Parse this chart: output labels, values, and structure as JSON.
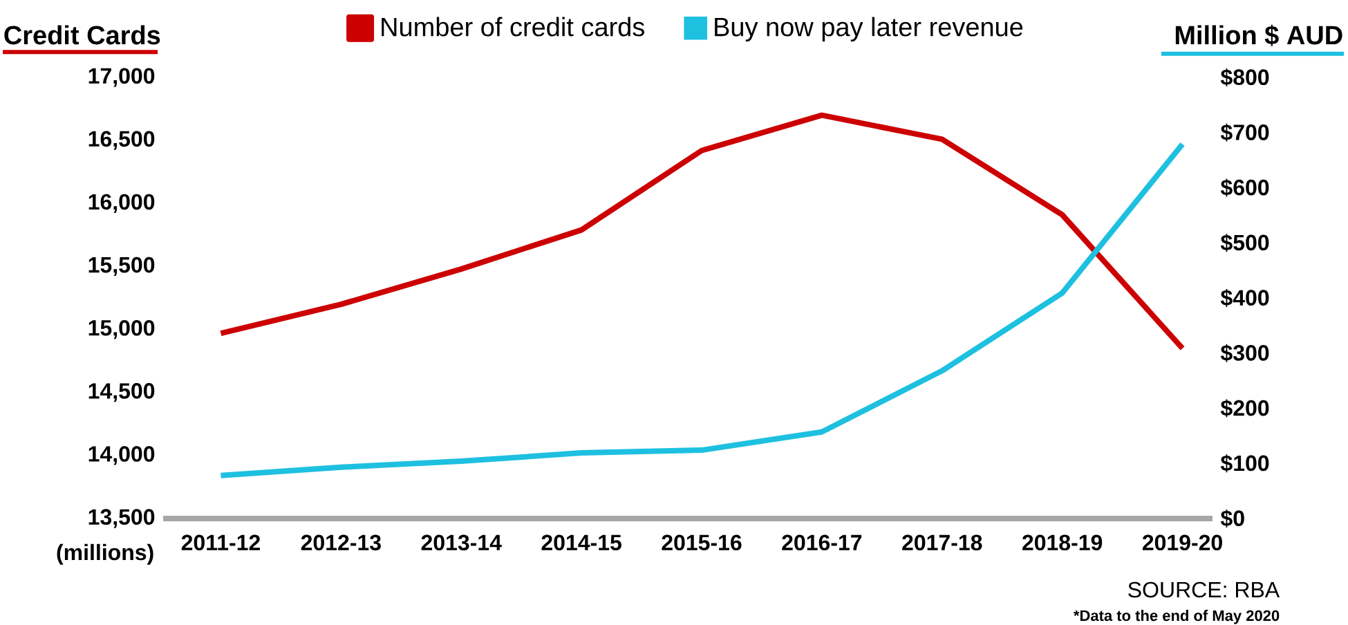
{
  "chart_data": {
    "type": "line",
    "ylabel": "Credit Cards",
    "y2label": "Million $ AUD",
    "legend": "top",
    "categories": [
      "2011-12",
      "2012-13",
      "2013-14",
      "2014-15",
      "2015-16",
      "2016-17",
      "2017-18",
      "2018-19",
      "2019-20"
    ],
    "series": [
      {
        "name": "Number of credit cards",
        "color": "#cc0000",
        "values": [
          14970,
          15200,
          15480,
          15790,
          16420,
          16700,
          16510,
          15910,
          14850
        ]
      },
      {
        "name": "Buy now pay later revenue",
        "color": "#1ec0e0",
        "axis": "y2",
        "values": [
          78,
          93,
          104,
          119,
          124,
          157,
          268,
          409,
          679
        ]
      }
    ],
    "ylim": [
      13500,
      17000
    ],
    "yticks": [
      {
        "value": 13500,
        "label": "13,500"
      },
      {
        "value": 14000,
        "label": "14,000"
      },
      {
        "value": 14500,
        "label": "14,500"
      },
      {
        "value": 15000,
        "label": "15,000"
      },
      {
        "value": 15500,
        "label": "15,500"
      },
      {
        "value": 16000,
        "label": "16,000"
      },
      {
        "value": 16500,
        "label": "16,500"
      },
      {
        "value": 17000,
        "label": "17,000"
      }
    ],
    "y2lim": [
      0,
      800
    ],
    "y2ticks": [
      {
        "value": 0,
        "label": "$0"
      },
      {
        "value": 100,
        "label": "$100"
      },
      {
        "value": 200,
        "label": "$200"
      },
      {
        "value": 300,
        "label": "$300"
      },
      {
        "value": 400,
        "label": "$400"
      },
      {
        "value": 500,
        "label": "$500"
      },
      {
        "value": 600,
        "label": "$600"
      },
      {
        "value": 700,
        "label": "$700"
      },
      {
        "value": 800,
        "label": "$800"
      }
    ],
    "annotations": [
      "(millions)",
      "SOURCE: RBA",
      "*Data to the end of May 2020"
    ]
  }
}
